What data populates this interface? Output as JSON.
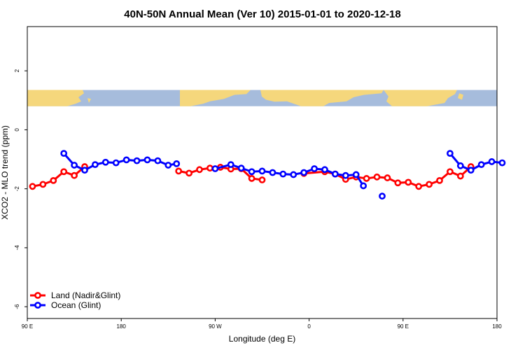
{
  "chart_data": {
    "type": "line",
    "title": "40N-50N Annual Mean (Ver 10)   2015-01-01 to 2020-12-18",
    "xlabel": "Longitude (deg E)",
    "ylabel": "XCO2 - MLO trend (ppm)",
    "xlim": [
      90,
      540
    ],
    "ylim": [
      -6.4,
      3.5
    ],
    "x_ticks": [
      {
        "value": 90,
        "label": "90 E"
      },
      {
        "value": 180,
        "label": "180"
      },
      {
        "value": 270,
        "label": "90 W"
      },
      {
        "value": 360,
        "label": "0"
      },
      {
        "value": 450,
        "label": "90 E"
      },
      {
        "value": 540,
        "label": "180"
      }
    ],
    "y_ticks": [
      {
        "value": 2,
        "label": "2"
      },
      {
        "value": 0,
        "label": "0"
      },
      {
        "value": -2,
        "label": "-2"
      },
      {
        "value": -4,
        "label": "-4"
      },
      {
        "value": -6,
        "label": "-6"
      }
    ],
    "map_band": {
      "y_top": 1.35,
      "y_bottom": 0.8,
      "land_color": "#f5d77c",
      "ocean_color": "#a6bcdc"
    },
    "series": [
      {
        "name": "Land (Nadir&Glint)",
        "color": "#ff0000",
        "segments": [
          [
            [
              95,
              -1.92
            ],
            [
              105,
              -1.85
            ],
            [
              115,
              -1.72
            ],
            [
              125,
              -1.42
            ],
            [
              135,
              -1.55
            ],
            [
              145,
              -1.25
            ]
          ],
          [
            [
              235,
              -1.4
            ],
            [
              245,
              -1.47
            ],
            [
              255,
              -1.35
            ],
            [
              265,
              -1.3
            ],
            [
              275,
              -1.27
            ],
            [
              285,
              -1.33
            ],
            [
              295,
              -1.32
            ],
            [
              305,
              -1.65
            ],
            [
              315,
              -1.7
            ]
          ],
          [
            [
              355,
              -1.48
            ],
            [
              375,
              -1.42
            ],
            [
              385,
              -1.5
            ],
            [
              395,
              -1.68
            ],
            [
              405,
              -1.6
            ],
            [
              415,
              -1.65
            ],
            [
              425,
              -1.6
            ],
            [
              435,
              -1.63
            ],
            [
              445,
              -1.8
            ],
            [
              455,
              -1.78
            ],
            [
              465,
              -1.92
            ],
            [
              475,
              -1.85
            ],
            [
              485,
              -1.72
            ],
            [
              495,
              -1.42
            ],
            [
              505,
              -1.57
            ],
            [
              515,
              -1.25
            ]
          ]
        ]
      },
      {
        "name": "Ocean (Glint)",
        "color": "#0000ff",
        "segments": [
          [
            [
              125,
              -0.8
            ],
            [
              135,
              -1.2
            ],
            [
              145,
              -1.37
            ],
            [
              155,
              -1.18
            ],
            [
              165,
              -1.1
            ],
            [
              175,
              -1.12
            ],
            [
              185,
              -1.02
            ],
            [
              195,
              -1.05
            ],
            [
              205,
              -1.02
            ],
            [
              215,
              -1.05
            ],
            [
              225,
              -1.2
            ],
            [
              233,
              -1.15
            ]
          ],
          [
            [
              270,
              -1.32
            ],
            [
              285,
              -1.18
            ],
            [
              295,
              -1.3
            ],
            [
              305,
              -1.42
            ],
            [
              315,
              -1.4
            ],
            [
              325,
              -1.45
            ],
            [
              335,
              -1.5
            ],
            [
              345,
              -1.52
            ],
            [
              355,
              -1.45
            ],
            [
              365,
              -1.32
            ],
            [
              375,
              -1.35
            ],
            [
              385,
              -1.5
            ],
            [
              395,
              -1.55
            ],
            [
              405,
              -1.52
            ],
            [
              412,
              -1.9
            ]
          ],
          [
            [
              430,
              -2.25
            ]
          ],
          [
            [
              495,
              -0.8
            ],
            [
              505,
              -1.22
            ],
            [
              515,
              -1.37
            ],
            [
              525,
              -1.18
            ],
            [
              535,
              -1.08
            ],
            [
              545,
              -1.12
            ]
          ]
        ]
      }
    ],
    "legend_position": "bottom-left"
  }
}
